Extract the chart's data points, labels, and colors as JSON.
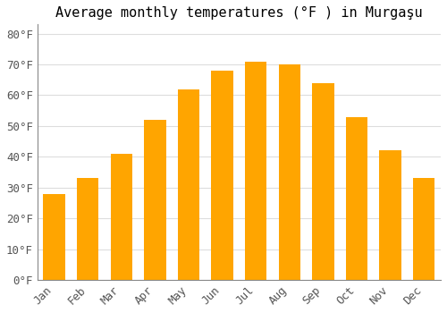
{
  "title": "Average monthly temperatures (°F ) in Murgaşu",
  "months": [
    "Jan",
    "Feb",
    "Mar",
    "Apr",
    "May",
    "Jun",
    "Jul",
    "Aug",
    "Sep",
    "Oct",
    "Nov",
    "Dec"
  ],
  "values": [
    28,
    33,
    41,
    52,
    62,
    68,
    71,
    70,
    64,
    53,
    42,
    33
  ],
  "bar_color_top": "#FFA500",
  "bar_color_bottom": "#FFD080",
  "bar_edge_color": "none",
  "background_color": "#FFFFFF",
  "grid_color": "#DDDDDD",
  "ylim": [
    0,
    83
  ],
  "yticks": [
    0,
    10,
    20,
    30,
    40,
    50,
    60,
    70,
    80
  ],
  "title_fontsize": 11,
  "tick_fontsize": 9
}
